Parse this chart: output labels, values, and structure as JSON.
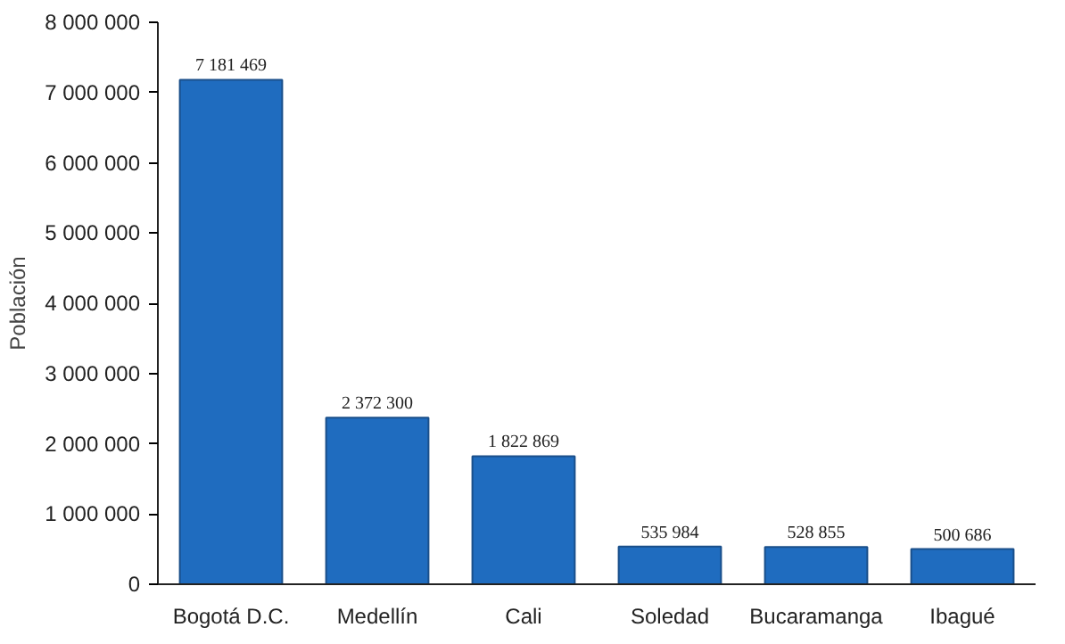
{
  "chart_data": {
    "type": "bar",
    "ylabel": "Población",
    "categories": [
      "Bogotá D.C.",
      "Medellín",
      "Cali",
      "Soledad",
      "Bucaramanga",
      "Ibagué"
    ],
    "values": [
      7181469,
      2372300,
      1822869,
      535984,
      528855,
      500686
    ],
    "value_labels": [
      "7 181 469",
      "2 372 300",
      "1 822 869",
      "535 984",
      "528 855",
      "500 686"
    ],
    "color": "#1f6cbf",
    "ylim": [
      0,
      8000000
    ],
    "yticks": [
      {
        "value": 0,
        "label": "0"
      },
      {
        "value": 1000000,
        "label": "1 000 000"
      },
      {
        "value": 2000000,
        "label": "2 000 000"
      },
      {
        "value": 3000000,
        "label": "3 000 000"
      },
      {
        "value": 4000000,
        "label": "4 000 000"
      },
      {
        "value": 5000000,
        "label": "5 000 000"
      },
      {
        "value": 6000000,
        "label": "6 000 000"
      },
      {
        "value": 7000000,
        "label": "7 000 000"
      },
      {
        "value": 8000000,
        "label": "8 000 000"
      }
    ],
    "grid": false
  }
}
